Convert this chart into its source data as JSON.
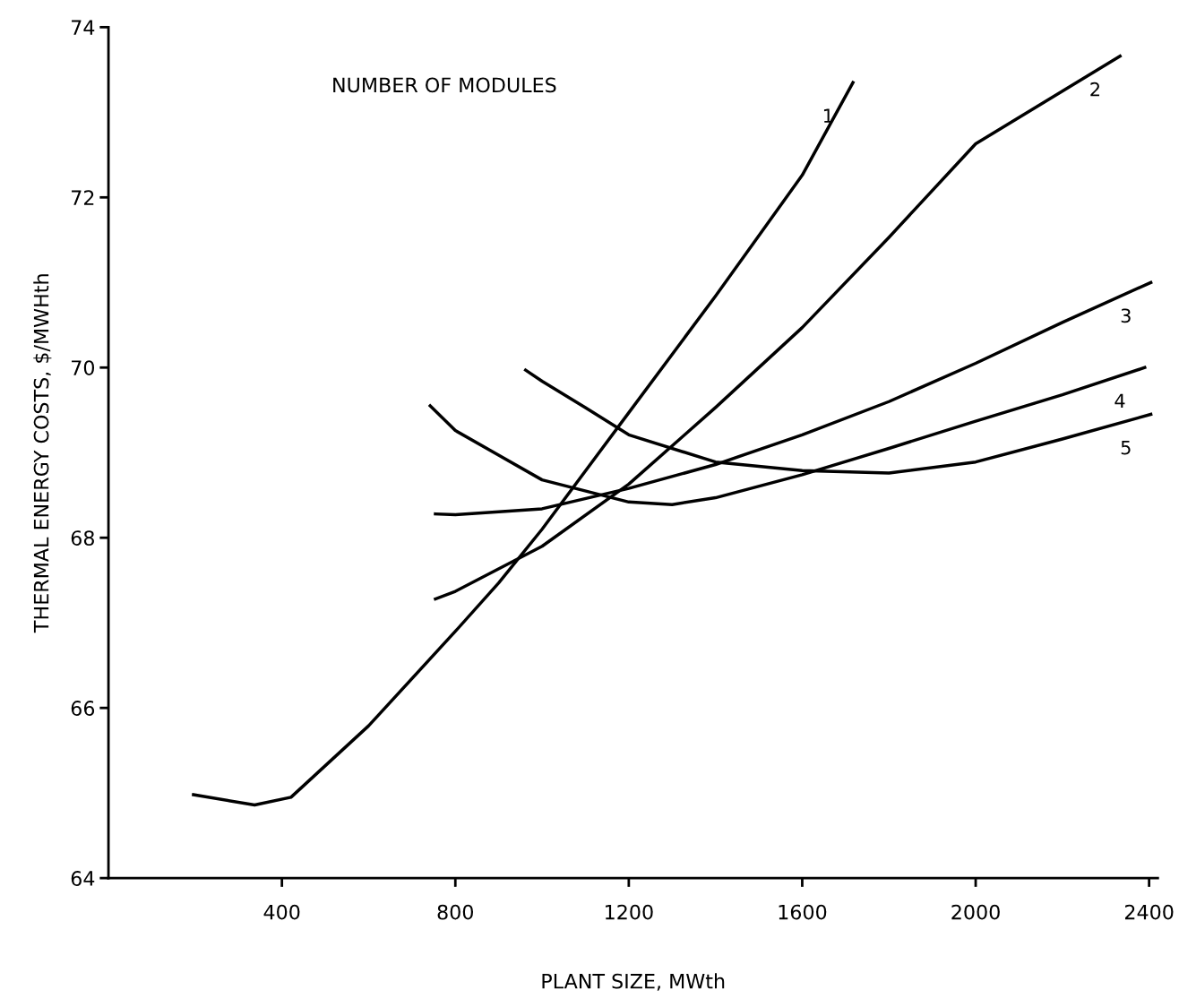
{
  "chart_data": {
    "type": "line",
    "xlabel": "PLANT SIZE, MWth",
    "ylabel": "THERMAL ENERGY COSTS, $/MWHth",
    "legend_title": "NUMBER OF MODULES",
    "xlim": [
      0,
      2420
    ],
    "ylim": [
      64,
      74
    ],
    "xticks": [
      400,
      800,
      1200,
      1600,
      2000,
      2400
    ],
    "yticks": [
      64,
      66,
      68,
      70,
      72,
      74
    ],
    "grid": false,
    "legend": false,
    "marker": "none",
    "line_style": "solid",
    "series": [
      {
        "name": "1",
        "color": "#000000",
        "x": [
          196,
          337,
          421,
          600,
          800,
          900,
          1000,
          1200,
          1400,
          1600,
          1717
        ],
        "values": [
          64.98,
          64.86,
          64.95,
          65.79,
          66.9,
          67.47,
          68.1,
          69.47,
          70.84,
          72.26,
          73.35
        ]
      },
      {
        "name": "2",
        "color": "#000000",
        "x": [
          754,
          800,
          1000,
          1200,
          1400,
          1600,
          1800,
          2000,
          2333
        ],
        "values": [
          67.28,
          67.37,
          67.9,
          68.63,
          69.53,
          70.47,
          71.53,
          72.63,
          73.66
        ]
      },
      {
        "name": "3",
        "color": "#000000",
        "x": [
          754,
          800,
          1000,
          1200,
          1400,
          1600,
          1800,
          2000,
          2200,
          2404
        ],
        "values": [
          68.28,
          68.27,
          68.34,
          68.58,
          68.86,
          69.21,
          69.6,
          70.05,
          70.53,
          71.0
        ]
      },
      {
        "name": "4",
        "color": "#000000",
        "x": [
          742,
          800,
          1000,
          1200,
          1300,
          1400,
          1600,
          1800,
          2000,
          2200,
          2390
        ],
        "values": [
          69.55,
          69.26,
          68.68,
          68.42,
          68.39,
          68.47,
          68.74,
          69.05,
          69.37,
          69.68,
          70.0
        ]
      },
      {
        "name": "5",
        "color": "#000000",
        "x": [
          962,
          1000,
          1100,
          1200,
          1400,
          1600,
          1800,
          2000,
          2200,
          2404
        ],
        "values": [
          69.97,
          69.84,
          69.53,
          69.21,
          68.89,
          68.79,
          68.76,
          68.89,
          69.16,
          69.45
        ]
      }
    ]
  }
}
